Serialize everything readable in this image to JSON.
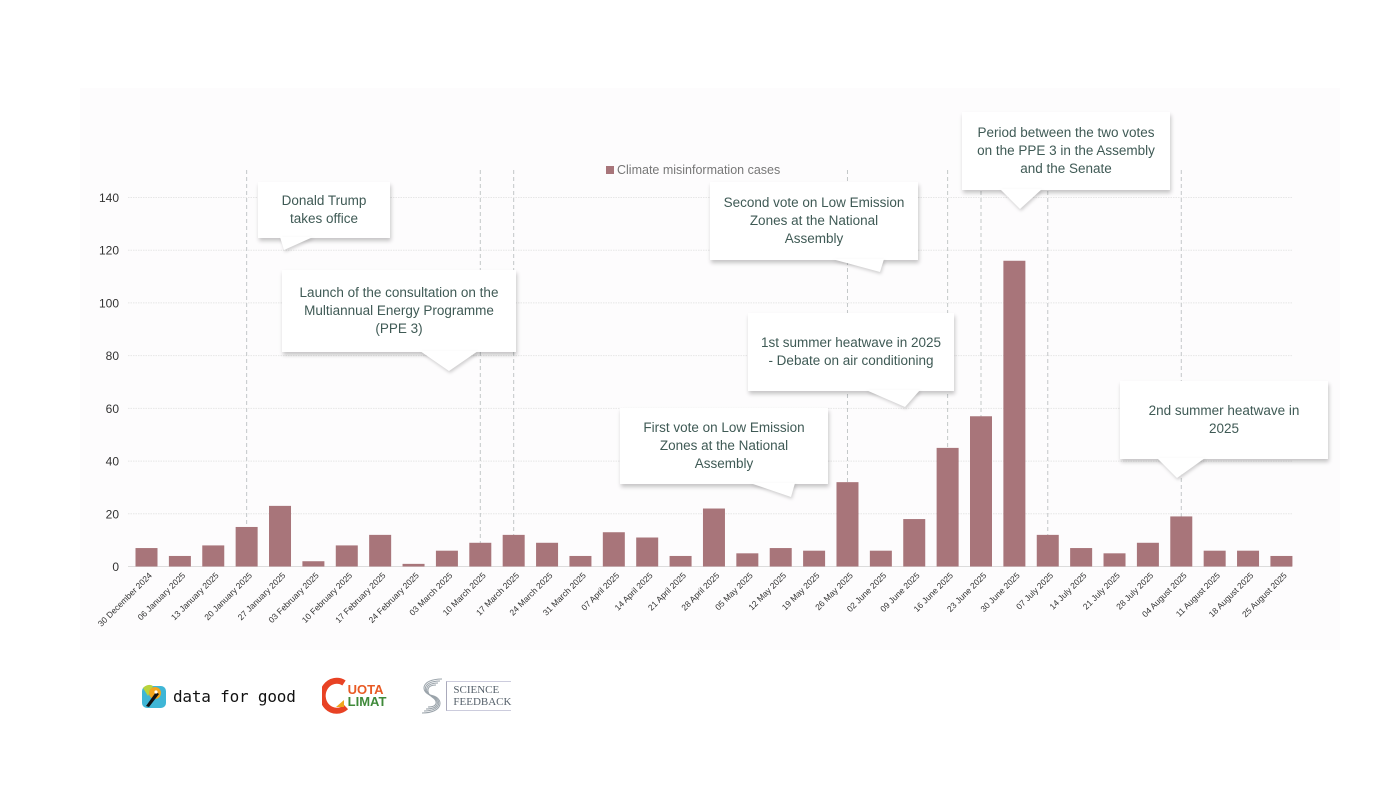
{
  "chart_data": {
    "type": "bar",
    "title": "",
    "xlabel": "",
    "ylabel": "",
    "ylim": [
      0,
      140
    ],
    "yticks": [
      0,
      20,
      40,
      60,
      80,
      100,
      120,
      140
    ],
    "grid": true,
    "legend": {
      "position": "top-center",
      "entries": [
        "Climate misinformation cases"
      ]
    },
    "bar_color": "#a8757a",
    "categories": [
      "30 December 2024",
      "06 January 2025",
      "13 January 2025",
      "20 January 2025",
      "27 January 2025",
      "03 February 2025",
      "10 February 2025",
      "17 February 2025",
      "24 February 2025",
      "03 March 2025",
      "10 March 2025",
      "17 March 2025",
      "24 March 2025",
      "31 March 2025",
      "07 April 2025",
      "14 April 2025",
      "21 April 2025",
      "28 April 2025",
      "05 May 2025",
      "12 May 2025",
      "19 May 2025",
      "26 May 2025",
      "02 June 2025",
      "09 June 2025",
      "16 June 2025",
      "23 June 2025",
      "30 June 2025",
      "07 July 2025",
      "14 July 2025",
      "21 July 2025",
      "28 July 2025",
      "04 August 2025",
      "11 August 2025",
      "18 August 2025",
      "25 August 2025"
    ],
    "series": [
      {
        "name": "Climate misinformation cases",
        "values": [
          7,
          4,
          8,
          15,
          23,
          2,
          8,
          12,
          1,
          6,
          9,
          12,
          9,
          4,
          13,
          11,
          4,
          22,
          5,
          7,
          6,
          32,
          6,
          18,
          45,
          57,
          116,
          12,
          7,
          5,
          9,
          19,
          6,
          6,
          4
        ]
      }
    ],
    "event_markers": [
      {
        "category": "20 January 2025",
        "label": "Donald Trump\ntakes office"
      },
      {
        "category": "10 March 2025",
        "label": "Launch of the consultation on the\nMultiannual Energy Programme\n(PPE 3)"
      },
      {
        "category": "17 March 2025",
        "label": ""
      },
      {
        "category": "26 May 2025",
        "label": "Second vote on Low Emission\nZones at the National\nAssembly"
      },
      {
        "category": "16 June 2025",
        "label": "1st summer heatwave in 2025\n- Debate on air conditioning"
      },
      {
        "category": "23 June 2025",
        "label": ""
      },
      {
        "category": "07 July 2025",
        "label": "Period between the two votes\non the PPE 3 in the Assembly\nand the Senate"
      },
      {
        "category": "04 August 2025",
        "label": "2nd summer heatwave in\n2025"
      }
    ],
    "annotations": [
      {
        "id": "trump",
        "text": "Donald Trump\ntakes office"
      },
      {
        "id": "ppe3-consultation",
        "text": "Launch of the consultation on the\nMultiannual Energy Programme\n(PPE 3)"
      },
      {
        "id": "second-vote-lez",
        "text": "Second vote on Low Emission\nZones at the National\nAssembly"
      },
      {
        "id": "ppe3-votes-period",
        "text": "Period between the two votes\non the PPE 3 in the Assembly\nand the Senate"
      },
      {
        "id": "first-heatwave",
        "text": "1st summer heatwave in 2025\n- Debate on air conditioning"
      },
      {
        "id": "first-vote-lez",
        "text": "First vote on Low Emission\nZones at the National\nAssembly"
      },
      {
        "id": "second-heatwave",
        "text": "2nd summer heatwave in\n2025"
      }
    ]
  },
  "logos": {
    "data_for_good": "data for good",
    "quota_climat_line1": "UOTA",
    "quota_climat_line2": "LIMAT",
    "science_feedback_line1": "SCIENCE",
    "science_feedback_line2": "FEEDBACK"
  },
  "colors": {
    "bar": "#a8757a",
    "annotation_text": "#3f5a55",
    "panel_bg": "#fdfcfd"
  }
}
